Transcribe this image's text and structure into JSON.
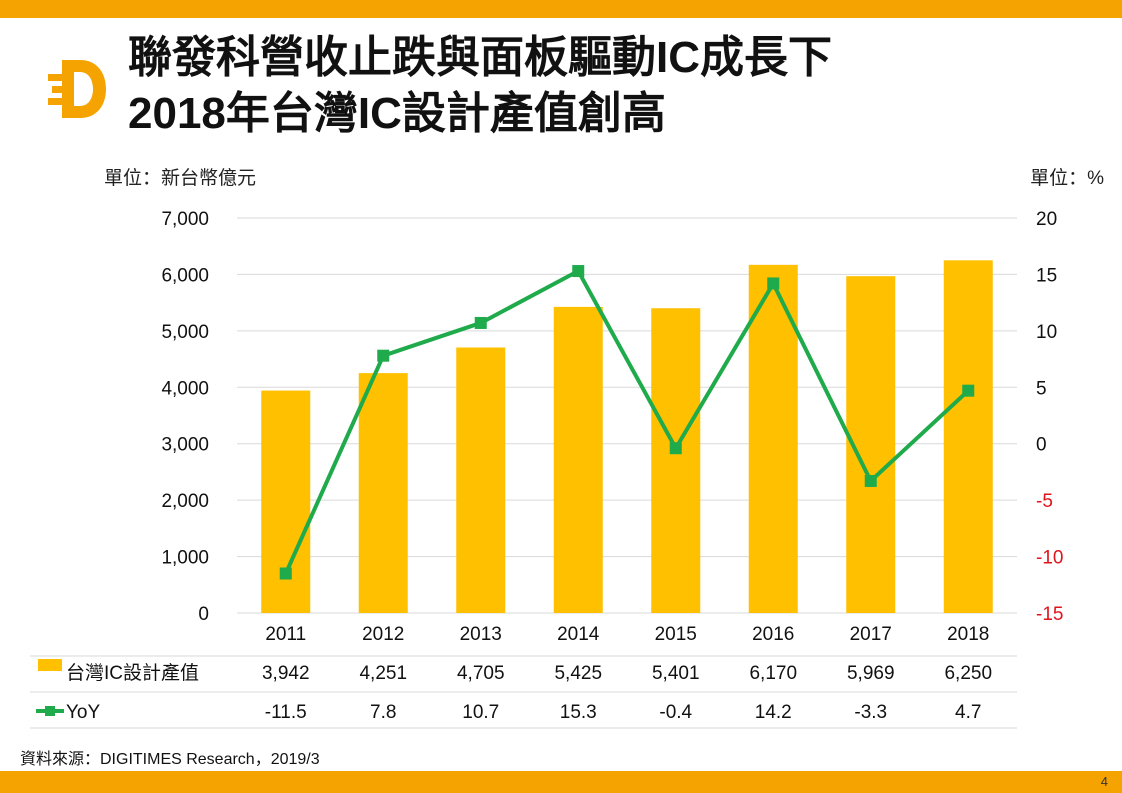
{
  "title": {
    "line1": "聯發科營收止跌與面板驅動IC成長下",
    "line2": "2018年台灣IC設計產值創高"
  },
  "units": {
    "left": "單位：新台幣億元",
    "right": "單位：%"
  },
  "source": "資料來源：DIGITIMES Research，2019/3",
  "page_number": "4",
  "colors": {
    "accent": "#F5A300",
    "bar": "#FFC000",
    "line": "#1FAA4B",
    "negative": "#E0141B"
  },
  "chart_data": {
    "type": "bar",
    "categories": [
      "2011",
      "2012",
      "2013",
      "2014",
      "2015",
      "2016",
      "2017",
      "2018"
    ],
    "series": [
      {
        "name": "台灣IC設計產值",
        "type": "bar",
        "axis": "left",
        "values": [
          3942,
          4251,
          4705,
          5425,
          5401,
          6170,
          5969,
          6250
        ],
        "labels": [
          "3,942",
          "4,251",
          "4,705",
          "5,425",
          "5,401",
          "6,170",
          "5,969",
          "6,250"
        ]
      },
      {
        "name": "YoY",
        "type": "line",
        "axis": "right",
        "values": [
          -11.5,
          7.8,
          10.7,
          15.3,
          -0.4,
          14.2,
          -3.3,
          4.7
        ],
        "labels": [
          "-11.5",
          "7.8",
          "10.7",
          "15.3",
          "-0.4",
          "14.2",
          "-3.3",
          "4.7"
        ]
      }
    ],
    "y_left": {
      "range": [
        0,
        7000
      ],
      "ticks": [
        0,
        1000,
        2000,
        3000,
        4000,
        5000,
        6000,
        7000
      ],
      "tick_labels": [
        "0",
        "1,000",
        "2,000",
        "3,000",
        "4,000",
        "5,000",
        "6,000",
        "7,000"
      ]
    },
    "y_right": {
      "range": [
        -15,
        20
      ],
      "ticks": [
        -15,
        -10,
        -5,
        0,
        5,
        10,
        15,
        20
      ],
      "tick_labels": [
        "-15",
        "-10",
        "-5",
        "0",
        "5",
        "10",
        "15",
        "20"
      ]
    },
    "grid": true,
    "legend": "data-table"
  }
}
